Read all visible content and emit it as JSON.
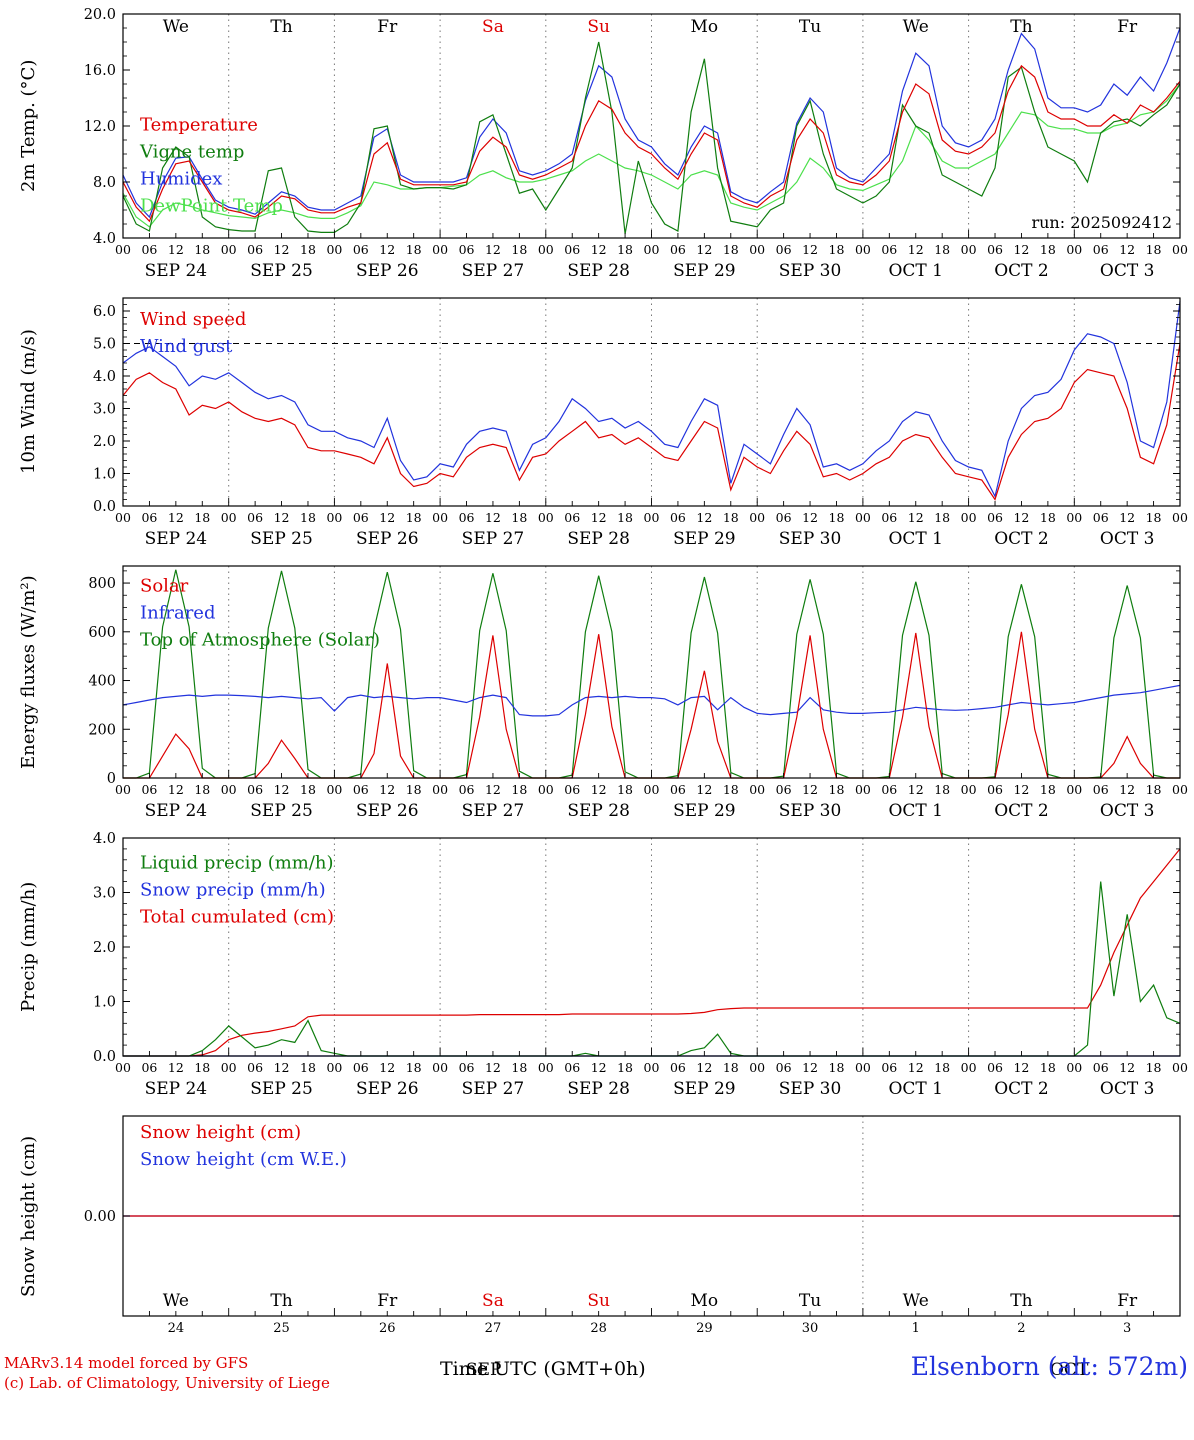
{
  "meta": {
    "run_label": "run: 2025092412",
    "footer_left_1": "MARv3.14 model forced by GFS",
    "footer_left_2": "(c) Lab. of Climatology, University of Liege",
    "time_axis_label": "Time UTC (GMT+0h)",
    "station_label": "Elsenborn (alt: 572m)",
    "month_left": "SEP",
    "month_right": "OCT"
  },
  "colors": {
    "red": "#dd0000",
    "blue": "#2233dd",
    "darkgreen": "#0f7d0f",
    "lightgreen": "#4ce04c",
    "black": "#000000",
    "grid": "#777777"
  },
  "time": {
    "step_hours": 3,
    "total_hours": 240,
    "hour_cycle": [
      "00",
      "06",
      "12",
      "18"
    ],
    "day_names": [
      "We",
      "Th",
      "Fr",
      "Sa",
      "Su",
      "Mo",
      "Tu",
      "We",
      "Th",
      "Fr"
    ],
    "weekend_indices": [
      3,
      4
    ],
    "day_numbers": [
      "24",
      "25",
      "26",
      "27",
      "28",
      "29",
      "30",
      "1",
      "2",
      "3"
    ],
    "date_labels": [
      "SEP 24",
      "SEP 25",
      "SEP 26",
      "SEP 27",
      "SEP 28",
      "SEP 29",
      "SEP 30",
      "OCT 1",
      "OCT 2",
      "OCT 3"
    ]
  },
  "chart_data": [
    {
      "type": "line",
      "name": "2m-temperature",
      "ylabel": "2m Temp. (°C)",
      "ylim": [
        4,
        20
      ],
      "yticks": [
        4,
        8,
        12,
        16,
        20
      ],
      "yformat": "1dp",
      "minor_step": 1,
      "grid": "vertical-dotted-daily",
      "legend_position": "lower-left",
      "annotation": "run: 2025092412",
      "series": [
        {
          "name": "Temperature",
          "color": "#dd0000",
          "values": [
            8.0,
            6.2,
            5.2,
            7.5,
            9.3,
            9.5,
            8.0,
            6.5,
            6.0,
            5.8,
            5.5,
            6.2,
            7.0,
            6.8,
            6.0,
            5.8,
            5.8,
            6.2,
            6.5,
            10.0,
            10.8,
            8.2,
            7.8,
            7.8,
            7.8,
            7.8,
            8.0,
            10.2,
            11.2,
            10.5,
            8.5,
            8.2,
            8.5,
            9.0,
            9.5,
            12.0,
            13.8,
            13.2,
            11.5,
            10.5,
            10.0,
            9.0,
            8.2,
            10.0,
            11.5,
            11.0,
            7.0,
            6.5,
            6.2,
            7.0,
            7.5,
            11.0,
            12.5,
            11.5,
            8.5,
            8.0,
            7.8,
            8.5,
            9.5,
            13.0,
            15.0,
            14.3,
            11.0,
            10.2,
            10.0,
            10.5,
            11.5,
            14.5,
            16.3,
            15.5,
            13.0,
            12.5,
            12.5,
            12.0,
            12.0,
            12.8,
            12.2,
            13.5,
            13.0,
            14.0,
            15.2
          ]
        },
        {
          "name": "Vigne temp",
          "color": "#0f7d0f",
          "values": [
            7.0,
            5.0,
            4.5,
            9.0,
            10.5,
            9.8,
            5.5,
            4.8,
            4.6,
            4.5,
            4.5,
            8.8,
            9.0,
            5.5,
            4.5,
            4.4,
            4.4,
            5.0,
            6.5,
            11.8,
            12.0,
            7.8,
            7.5,
            7.6,
            7.6,
            7.5,
            7.8,
            12.3,
            12.8,
            10.0,
            7.2,
            7.5,
            6.0,
            7.5,
            9.0,
            14.0,
            18.0,
            13.0,
            4.3,
            9.5,
            6.5,
            5.0,
            4.5,
            13.0,
            16.8,
            9.0,
            5.2,
            5.0,
            4.8,
            6.0,
            6.5,
            12.0,
            13.8,
            10.0,
            7.5,
            7.0,
            6.5,
            7.0,
            8.0,
            13.5,
            12.0,
            11.5,
            8.5,
            8.0,
            7.5,
            7.0,
            9.0,
            15.5,
            16.2,
            13.0,
            10.5,
            10.0,
            9.5,
            8.0,
            11.5,
            12.3,
            12.5,
            12.0,
            12.8,
            13.5,
            15.0
          ]
        },
        {
          "name": "Humidex",
          "color": "#2233dd",
          "values": [
            8.5,
            6.5,
            5.5,
            8.0,
            9.7,
            9.8,
            8.2,
            6.7,
            6.2,
            6.0,
            5.7,
            6.5,
            7.3,
            7.0,
            6.2,
            6.0,
            6.0,
            6.5,
            7.0,
            11.2,
            11.8,
            8.5,
            8.0,
            8.0,
            8.0,
            8.0,
            8.3,
            11.2,
            12.5,
            11.5,
            8.8,
            8.5,
            8.8,
            9.3,
            10.0,
            13.8,
            16.3,
            15.5,
            12.5,
            11.0,
            10.5,
            9.3,
            8.5,
            10.5,
            12.0,
            11.5,
            7.3,
            6.8,
            6.5,
            7.3,
            8.0,
            12.2,
            14.0,
            13.0,
            9.0,
            8.3,
            8.0,
            9.0,
            10.0,
            14.5,
            17.2,
            16.3,
            12.0,
            10.8,
            10.5,
            11.0,
            12.5,
            16.0,
            18.6,
            17.5,
            14.0,
            13.3,
            13.3,
            13.0,
            13.5,
            15.0,
            14.2,
            15.5,
            14.5,
            16.5,
            19.0
          ]
        },
        {
          "name": "DewPoint Temp",
          "color": "#4ce04c",
          "values": [
            7.2,
            5.5,
            4.8,
            6.0,
            6.5,
            6.3,
            6.0,
            5.8,
            5.6,
            5.5,
            5.4,
            5.8,
            6.0,
            5.8,
            5.5,
            5.4,
            5.4,
            5.8,
            6.3,
            8.0,
            7.8,
            7.5,
            7.5,
            7.6,
            7.6,
            7.7,
            7.8,
            8.5,
            8.8,
            8.3,
            8.0,
            8.0,
            8.2,
            8.5,
            8.8,
            9.5,
            10.0,
            9.5,
            9.0,
            8.8,
            8.5,
            8.0,
            7.5,
            8.5,
            8.8,
            8.5,
            6.5,
            6.2,
            6.0,
            6.5,
            7.0,
            8.0,
            9.7,
            9.0,
            7.8,
            7.5,
            7.4,
            7.8,
            8.2,
            9.5,
            12.0,
            11.0,
            9.5,
            9.0,
            9.0,
            9.5,
            10.0,
            11.5,
            13.0,
            12.8,
            12.0,
            11.8,
            11.8,
            11.5,
            11.5,
            12.0,
            12.2,
            12.8,
            13.0,
            13.8,
            15.0
          ]
        }
      ]
    },
    {
      "type": "line",
      "name": "10m-wind",
      "ylabel": "10m Wind (m/s)",
      "ylim": [
        0,
        6.4
      ],
      "yticks": [
        0,
        1,
        2,
        3,
        4,
        5,
        6
      ],
      "yformat": "1dp",
      "minor_step": 0.2,
      "hline_dashed": 5.0,
      "grid": "vertical-dotted-daily",
      "legend_position": "upper-left",
      "series": [
        {
          "name": "Wind speed",
          "color": "#dd0000",
          "values": [
            3.4,
            3.9,
            4.1,
            3.8,
            3.6,
            2.8,
            3.1,
            3.0,
            3.2,
            2.9,
            2.7,
            2.6,
            2.7,
            2.5,
            1.8,
            1.7,
            1.7,
            1.6,
            1.5,
            1.3,
            2.1,
            1.0,
            0.6,
            0.7,
            1.0,
            0.9,
            1.5,
            1.8,
            1.9,
            1.8,
            0.8,
            1.5,
            1.6,
            2.0,
            2.3,
            2.6,
            2.1,
            2.2,
            1.9,
            2.1,
            1.8,
            1.5,
            1.4,
            2.0,
            2.6,
            2.4,
            0.5,
            1.5,
            1.2,
            1.0,
            1.7,
            2.3,
            1.9,
            0.9,
            1.0,
            0.8,
            1.0,
            1.3,
            1.5,
            2.0,
            2.2,
            2.1,
            1.5,
            1.0,
            0.9,
            0.8,
            0.2,
            1.5,
            2.2,
            2.6,
            2.7,
            3.0,
            3.8,
            4.2,
            4.1,
            4.0,
            3.0,
            1.5,
            1.3,
            2.5,
            5.0
          ]
        },
        {
          "name": "Wind gust",
          "color": "#2233dd",
          "values": [
            4.4,
            4.7,
            4.9,
            4.6,
            4.3,
            3.7,
            4.0,
            3.9,
            4.1,
            3.8,
            3.5,
            3.3,
            3.4,
            3.2,
            2.5,
            2.3,
            2.3,
            2.1,
            2.0,
            1.8,
            2.7,
            1.4,
            0.8,
            0.9,
            1.3,
            1.2,
            1.9,
            2.3,
            2.4,
            2.3,
            1.1,
            1.9,
            2.1,
            2.6,
            3.3,
            3.0,
            2.6,
            2.7,
            2.4,
            2.6,
            2.3,
            1.9,
            1.8,
            2.6,
            3.3,
            3.1,
            0.7,
            1.9,
            1.6,
            1.3,
            2.2,
            3.0,
            2.5,
            1.2,
            1.3,
            1.1,
            1.3,
            1.7,
            2.0,
            2.6,
            2.9,
            2.8,
            2.0,
            1.4,
            1.2,
            1.1,
            0.3,
            2.0,
            3.0,
            3.4,
            3.5,
            3.9,
            4.8,
            5.3,
            5.2,
            5.0,
            3.8,
            2.0,
            1.8,
            3.2,
            6.3
          ]
        }
      ]
    },
    {
      "type": "line",
      "name": "energy-fluxes",
      "ylabel": "Energy fluxes (W/m²)",
      "ylim": [
        0,
        870
      ],
      "yticks": [
        0,
        200,
        400,
        600,
        800
      ],
      "yformat": "int",
      "minor_step": 50,
      "grid": "vertical-dotted-daily",
      "legend_position": "upper-left",
      "series": [
        {
          "name": "Solar",
          "color": "#dd0000",
          "values": [
            0,
            0,
            0,
            90,
            180,
            120,
            0,
            0,
            0,
            0,
            0,
            60,
            155,
            80,
            0,
            0,
            0,
            0,
            0,
            100,
            470,
            90,
            0,
            0,
            0,
            0,
            0,
            250,
            585,
            200,
            0,
            0,
            0,
            0,
            0,
            260,
            590,
            210,
            0,
            0,
            0,
            0,
            0,
            200,
            440,
            150,
            0,
            0,
            0,
            0,
            0,
            250,
            585,
            200,
            0,
            0,
            0,
            0,
            0,
            250,
            595,
            210,
            0,
            0,
            0,
            0,
            0,
            260,
            600,
            200,
            0,
            0,
            0,
            0,
            0,
            60,
            170,
            60,
            0,
            0,
            0
          ]
        },
        {
          "name": "Infrared",
          "color": "#2233dd",
          "values": [
            300,
            310,
            320,
            330,
            335,
            340,
            335,
            340,
            340,
            338,
            335,
            330,
            335,
            330,
            325,
            330,
            275,
            330,
            340,
            330,
            335,
            330,
            325,
            330,
            330,
            320,
            310,
            330,
            340,
            330,
            260,
            255,
            255,
            260,
            300,
            330,
            335,
            330,
            335,
            330,
            330,
            325,
            300,
            330,
            335,
            280,
            330,
            290,
            265,
            260,
            265,
            270,
            330,
            280,
            270,
            265,
            265,
            268,
            270,
            280,
            290,
            285,
            280,
            278,
            280,
            285,
            290,
            300,
            310,
            305,
            300,
            305,
            310,
            320,
            330,
            340,
            345,
            350,
            360,
            370,
            380
          ]
        },
        {
          "name": "Top of Atmosphere (Solar)",
          "color": "#0f7d0f",
          "values": [
            0,
            0,
            20,
            620,
            855,
            620,
            40,
            0,
            0,
            0,
            18,
            615,
            850,
            615,
            35,
            0,
            0,
            0,
            16,
            610,
            845,
            610,
            30,
            0,
            0,
            0,
            14,
            605,
            840,
            605,
            28,
            0,
            0,
            0,
            12,
            600,
            830,
            600,
            25,
            0,
            0,
            0,
            10,
            595,
            825,
            595,
            22,
            0,
            0,
            0,
            8,
            590,
            815,
            590,
            20,
            0,
            0,
            0,
            6,
            585,
            805,
            585,
            18,
            0,
            0,
            0,
            5,
            580,
            795,
            580,
            15,
            0,
            0,
            0,
            4,
            575,
            790,
            575,
            12,
            0,
            0
          ]
        }
      ]
    },
    {
      "type": "line",
      "name": "precipitation",
      "ylabel": "Precip (mm/h)",
      "ylim": [
        0,
        4
      ],
      "yticks": [
        0,
        1,
        2,
        3,
        4
      ],
      "yformat": "1dp",
      "minor_step": 0.2,
      "grid": "vertical-dotted-daily",
      "legend_position": "upper-left",
      "series": [
        {
          "name": "Liquid precip (mm/h)",
          "color": "#0f7d0f",
          "values": [
            0,
            0,
            0,
            0,
            0,
            0,
            0.1,
            0.3,
            0.55,
            0.35,
            0.15,
            0.2,
            0.3,
            0.25,
            0.65,
            0.1,
            0.05,
            0,
            0,
            0,
            0,
            0,
            0,
            0,
            0,
            0,
            0,
            0,
            0,
            0,
            0,
            0,
            0,
            0,
            0,
            0.05,
            0,
            0,
            0,
            0,
            0,
            0,
            0,
            0.1,
            0.15,
            0.4,
            0.05,
            0,
            0,
            0,
            0,
            0,
            0,
            0,
            0,
            0,
            0,
            0,
            0,
            0,
            0,
            0,
            0,
            0,
            0,
            0,
            0,
            0,
            0,
            0,
            0,
            0,
            0,
            0.2,
            3.2,
            1.1,
            2.6,
            1.0,
            1.3,
            0.7,
            0.6
          ]
        },
        {
          "name": "Snow precip (mm/h)",
          "color": "#2233dd",
          "constant": 0
        },
        {
          "name": "Total cumulated (cm)",
          "color": "#dd0000",
          "values": [
            0,
            0,
            0,
            0,
            0,
            0,
            0.02,
            0.1,
            0.3,
            0.38,
            0.42,
            0.45,
            0.5,
            0.55,
            0.72,
            0.75,
            0.75,
            0.75,
            0.75,
            0.75,
            0.75,
            0.75,
            0.75,
            0.75,
            0.75,
            0.75,
            0.75,
            0.76,
            0.76,
            0.76,
            0.76,
            0.76,
            0.76,
            0.76,
            0.77,
            0.77,
            0.77,
            0.77,
            0.77,
            0.77,
            0.77,
            0.77,
            0.77,
            0.78,
            0.8,
            0.85,
            0.87,
            0.88,
            0.88,
            0.88,
            0.88,
            0.88,
            0.88,
            0.88,
            0.88,
            0.88,
            0.88,
            0.88,
            0.88,
            0.88,
            0.88,
            0.88,
            0.88,
            0.88,
            0.88,
            0.88,
            0.88,
            0.88,
            0.88,
            0.88,
            0.88,
            0.88,
            0.88,
            0.88,
            1.3,
            1.9,
            2.4,
            2.9,
            3.2,
            3.5,
            3.8
          ]
        }
      ]
    },
    {
      "type": "line",
      "name": "snow-height",
      "ylabel": "Snow height (cm)",
      "ylim": [
        -1,
        1
      ],
      "yticks": [
        0
      ],
      "yformat": "2dp",
      "minor_step": 0,
      "grid": "vertical-dotted-month-boundary",
      "legend_position": "upper-left",
      "series": [
        {
          "name": "Snow height (cm)",
          "color": "#dd0000",
          "constant": 0
        },
        {
          "name": "Snow height (cm W.E.)",
          "color": "#2233dd",
          "constant": 0
        }
      ]
    }
  ]
}
